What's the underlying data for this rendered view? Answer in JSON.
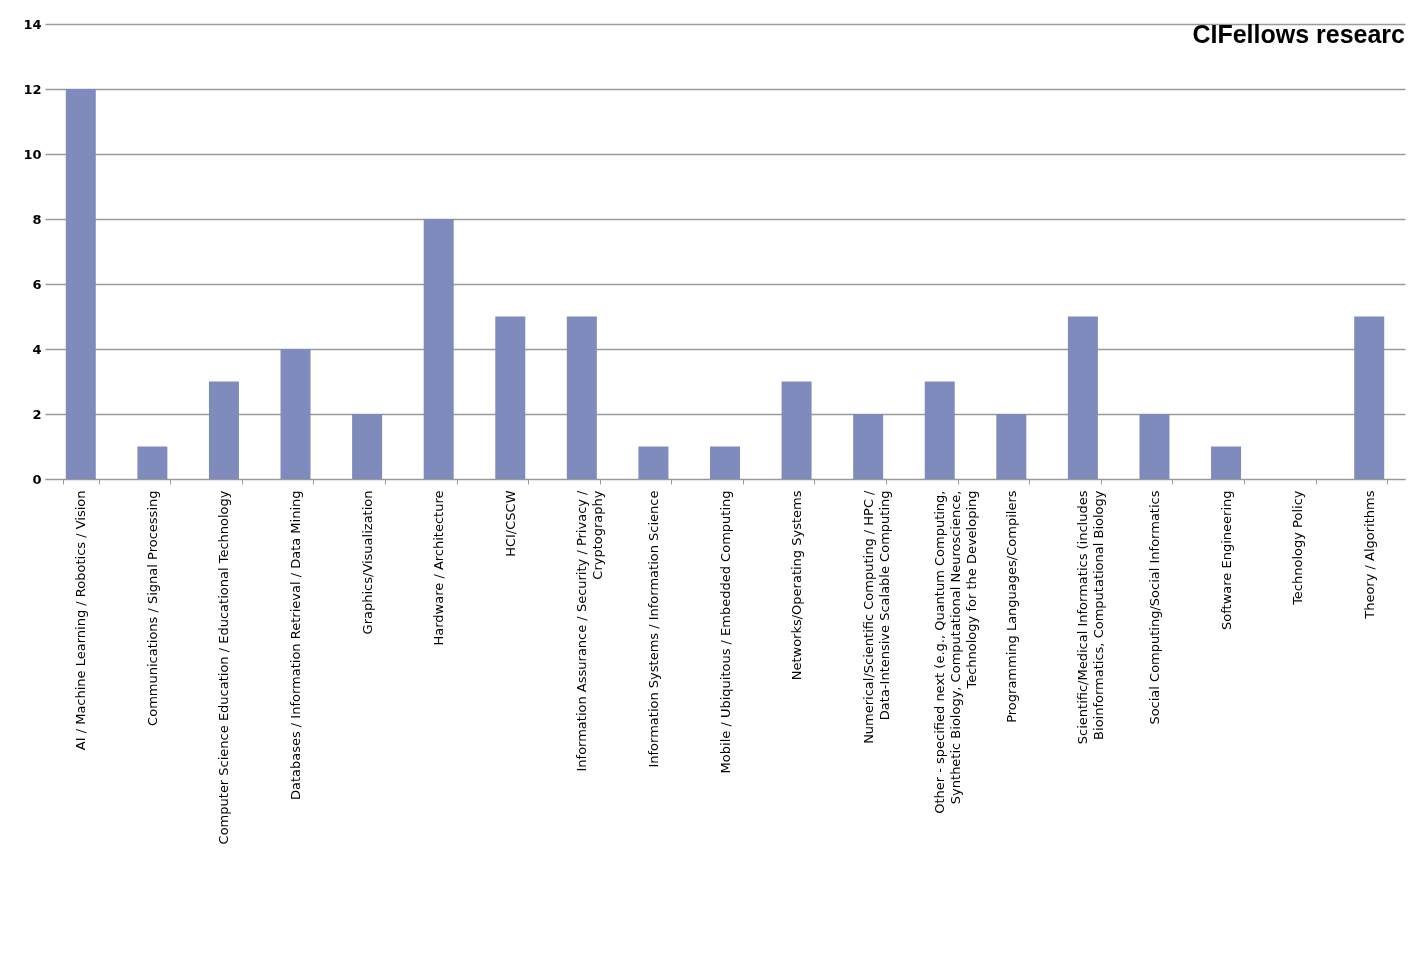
{
  "chart_data": {
    "type": "bar",
    "title": "CIFellows researc",
    "categories": [
      "AI / Machine Learning / Robotics / Vision",
      "Communications / Signal Processing",
      "Computer Science Education / Educational Technology",
      "Databases / Information Retrieval / Data Mining",
      "Graphics/Visualization",
      "Hardware / Architecture",
      "HCI/CSCW",
      "Information Assurance / Security / Privacy / Cryptography",
      "Information Systems / Information Science",
      "Mobile / Ubiquitous / Embedded Computing",
      "Networks/Operating Systems",
      "Numerical/Scientific Computing / HPC / Data-Intensive Scalable Computing",
      "Other - specified next (e.g., Quantum Computing, Synthetic Biology, Computational Neuroscience, Technology for the Developing",
      "Programming Languages/Compilers",
      "Scientific/Medical Informatics (includes Bioinformatics, Computational Biology",
      "Social Computing/Social Informatics",
      "Software Engineering",
      "Technology Policy",
      "Theory / Algorithms"
    ],
    "values": [
      12,
      1,
      3,
      4,
      2,
      8,
      5,
      5,
      1,
      1,
      3,
      2,
      3,
      2,
      5,
      2,
      1,
      0,
      5
    ],
    "color": "#7f8bbd",
    "ylim": [
      0,
      14
    ],
    "yticks": [
      0,
      2,
      4,
      6,
      8,
      10,
      12,
      14
    ],
    "grid": true
  }
}
